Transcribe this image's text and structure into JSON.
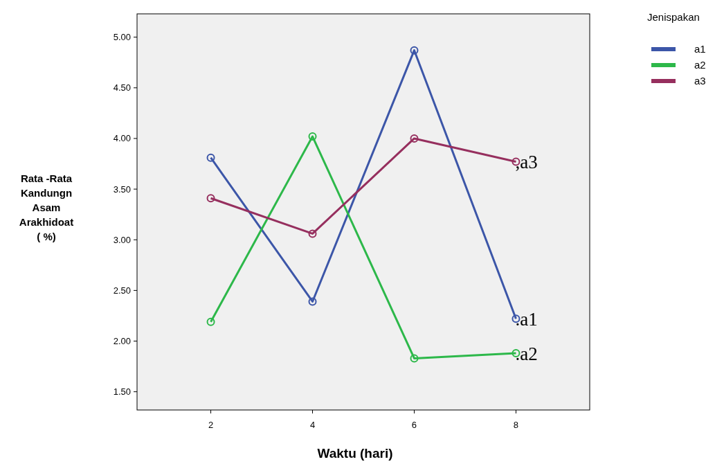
{
  "chart_data": {
    "type": "line",
    "xlabel": "Waktu (hari)",
    "ylabel": "Rata -Rata\nKandungn\nAsam\nArakhidoat\n( %)",
    "legend_title": "Jenispakan",
    "x": [
      2,
      4,
      6,
      8
    ],
    "xlim": [
      0.55,
      9.45
    ],
    "xticks": [
      2,
      4,
      6,
      8
    ],
    "ylim": [
      1.32,
      5.23
    ],
    "yticks": [
      {
        "value": 1.5,
        "label": "1.50"
      },
      {
        "value": 2,
        "label": "2.00"
      },
      {
        "value": 2.5,
        "label": "2.50"
      },
      {
        "value": 3,
        "label": "3.00"
      },
      {
        "value": 3.5,
        "label": "3.50"
      },
      {
        "value": 4,
        "label": "4.00"
      },
      {
        "value": 4.5,
        "label": "4.50"
      },
      {
        "value": 5,
        "label": "5.00"
      }
    ],
    "marker": "circle",
    "legend": "top right",
    "grid": false,
    "series": [
      {
        "name": "a1",
        "color": "#3c56a8",
        "values": [
          3.81,
          2.39,
          4.87,
          2.22
        ]
      },
      {
        "name": "a2",
        "color": "#2db84a",
        "values": [
          2.19,
          4.02,
          1.83,
          1.88
        ]
      },
      {
        "name": "a3",
        "color": "#962f5e",
        "values": [
          3.41,
          3.06,
          4.0,
          3.77
        ]
      }
    ],
    "annotations": [
      ",a3",
      ".a1",
      ".a2"
    ]
  }
}
